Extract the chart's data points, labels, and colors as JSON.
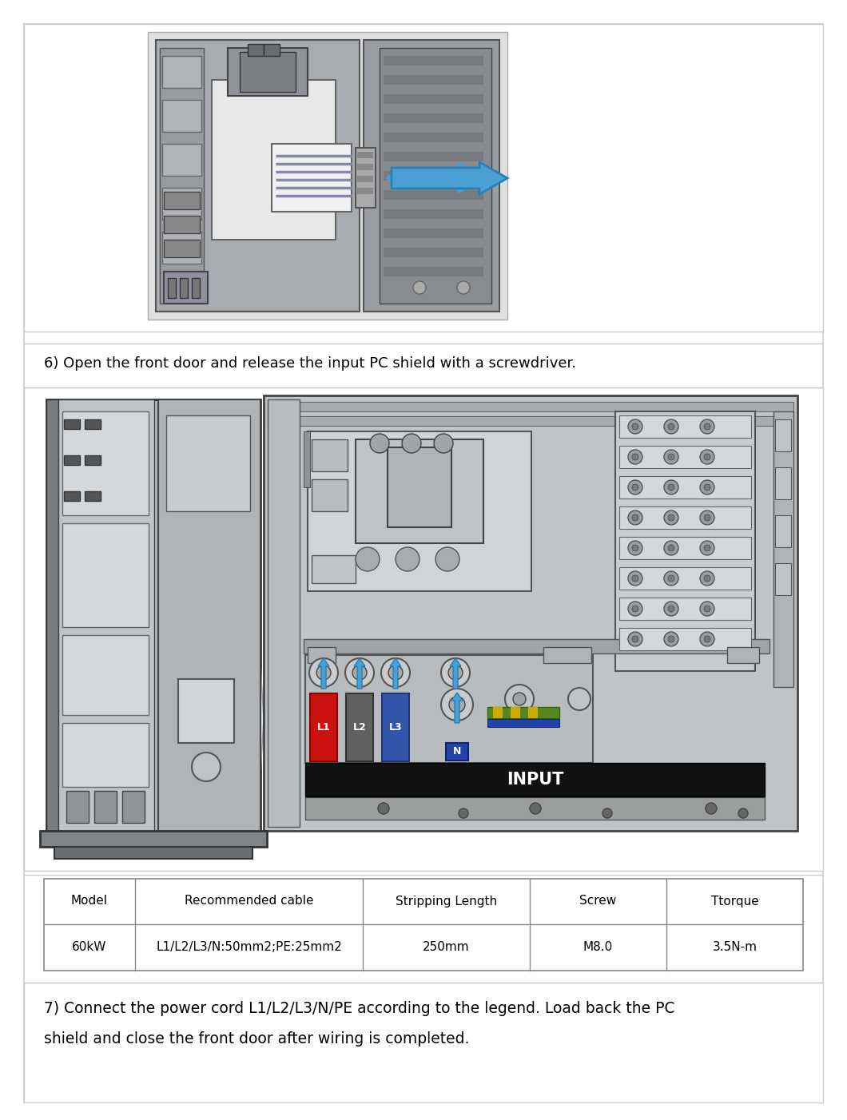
{
  "bg_color": "#ffffff",
  "page_border_color": "#cccccc",
  "text_step6": "6) Open the front door and release the input PC shield with a screwdriver.",
  "table": {
    "headers": [
      "Model",
      "Recommended cable",
      "Stripping Length",
      "Screw",
      "Ttorque"
    ],
    "rows": [
      [
        "60kW",
        "L1/L2/L3/N:50mm2;PE:25mm2",
        "250mm",
        "M8.0",
        "3.5N-m"
      ]
    ]
  },
  "text_step7_line1": "7) Connect the power cord L1/L2/L3/N/PE according to the legend. Load back the PC",
  "text_step7_line2": "shield and close the front door after wiring is completed.",
  "cabinet_gray": "#b0b4b8",
  "cabinet_dark": "#6a6e72",
  "cabinet_light": "#d0d4d8",
  "cabinet_panel": "#e8eaec",
  "inset_bg": "#c0c4c8",
  "arrow_blue": "#4a9fd4",
  "l1_red": "#cc1111",
  "l2_gray": "#606060",
  "l3_blue": "#3355aa",
  "n_blue": "#2244aa",
  "pe_green": "#447722",
  "pe_yellow": "#ccaa00",
  "input_bar": "#111111",
  "section_divider": "#cccccc"
}
